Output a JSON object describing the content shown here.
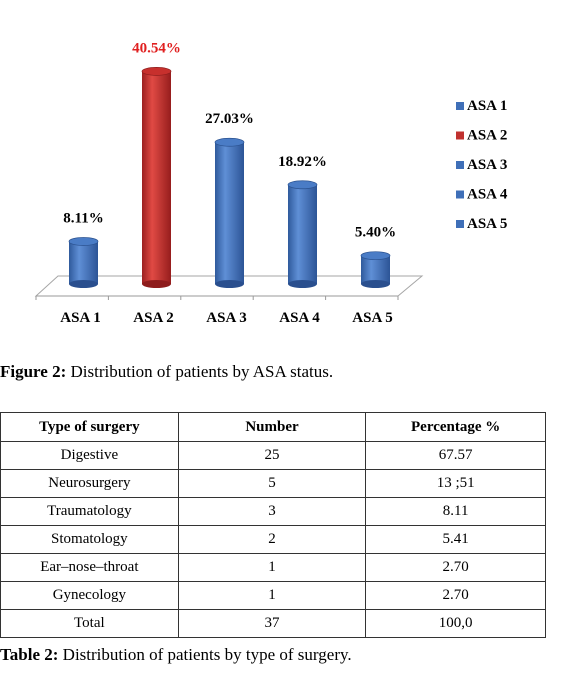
{
  "chart_data": {
    "type": "bar",
    "categories": [
      "ASA 1",
      "ASA 2",
      "ASA 3",
      "ASA 4",
      "ASA 5"
    ],
    "values": [
      8.11,
      40.54,
      27.03,
      18.92,
      5.4
    ],
    "data_labels": [
      "8.11%",
      "40.54%",
      "27.03%",
      "18.92%",
      "5.40%"
    ],
    "colors": [
      "#3f6fb8",
      "#c0312f",
      "#3f6fb8",
      "#3f6fb8",
      "#3f6fb8"
    ],
    "highlight_label_color": "#e02020",
    "legend": [
      "ASA 1",
      "ASA 2",
      "ASA 3",
      "ASA 4",
      "ASA 5"
    ],
    "legend_position": "right",
    "ylim": [
      0,
      45
    ],
    "grid": false
  },
  "figure_caption": {
    "label": "Figure 2:",
    "text": " Distribution of patients by ASA status."
  },
  "table": {
    "headers": [
      "Type of surgery",
      "Number",
      "Percentage  %"
    ],
    "rows": [
      [
        "Digestive",
        "25",
        "67.57"
      ],
      [
        "Neurosurgery",
        "5",
        "13 ;51"
      ],
      [
        "Traumatology",
        "3",
        "8.11"
      ],
      [
        "Stomatology",
        "2",
        "5.41"
      ],
      [
        "Ear–nose–throat",
        "1",
        "2.70"
      ],
      [
        "Gynecology",
        "1",
        "2.70"
      ],
      [
        "Total",
        "37",
        "100,0"
      ]
    ]
  },
  "table_caption": {
    "label": "Table 2:",
    "text": " Distribution of patients by type of surgery."
  }
}
